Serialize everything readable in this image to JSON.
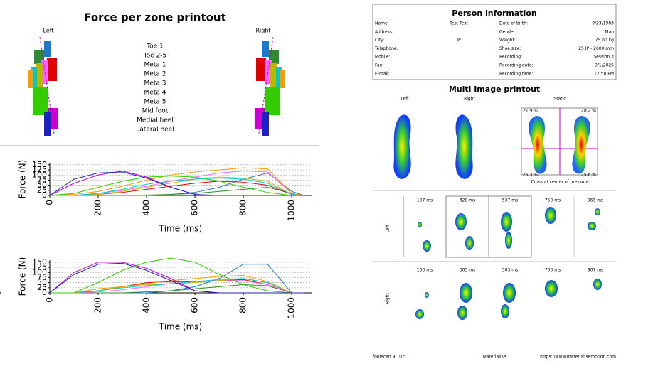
{
  "left_panel": {
    "title": "Force per zone printout",
    "foot_labels": [
      "Left",
      "Right"
    ]
  },
  "chart_data": [
    {
      "type": "line",
      "label": "Left",
      "ylabel": "Force (N)",
      "xlabel": "Time (ms)",
      "x": [
        0,
        100,
        200,
        300,
        400,
        500,
        600,
        700,
        800,
        900,
        1000,
        1050
      ],
      "xlim": [
        0,
        1085
      ],
      "ylim": [
        0,
        160
      ],
      "xticks": [
        0,
        200,
        400,
        600,
        800,
        1000
      ],
      "yticks": [
        0,
        25,
        50,
        75,
        100,
        125,
        150
      ],
      "grid": true,
      "series": [
        {
          "name": "Toe 1",
          "color": "#1f78c8",
          "values": [
            0,
            0,
            0,
            0,
            0,
            5,
            15,
            40,
            80,
            110,
            20,
            0
          ]
        },
        {
          "name": "Toe 2-5",
          "color": "#2e8b2e",
          "values": [
            0,
            0,
            0,
            0,
            2,
            5,
            10,
            20,
            30,
            40,
            10,
            0
          ]
        },
        {
          "name": "Meta 1",
          "color": "#e00000",
          "values": [
            0,
            0,
            5,
            15,
            30,
            45,
            60,
            70,
            65,
            50,
            5,
            0
          ]
        },
        {
          "name": "Meta 2",
          "color": "#ff66ff",
          "values": [
            0,
            0,
            10,
            25,
            45,
            70,
            90,
            110,
            120,
            115,
            10,
            0
          ]
        },
        {
          "name": "Meta 3",
          "color": "#b8b800",
          "values": [
            0,
            0,
            5,
            20,
            40,
            60,
            80,
            90,
            85,
            70,
            5,
            0
          ]
        },
        {
          "name": "Meta 4",
          "color": "#00c8c8",
          "values": [
            0,
            0,
            10,
            30,
            55,
            70,
            80,
            85,
            80,
            60,
            5,
            0
          ]
        },
        {
          "name": "Meta 5",
          "color": "#ff9900",
          "values": [
            0,
            5,
            20,
            45,
            75,
            100,
            115,
            125,
            135,
            130,
            10,
            0
          ]
        },
        {
          "name": "Mid foot",
          "color": "#33cc00",
          "values": [
            0,
            10,
            40,
            70,
            90,
            95,
            90,
            70,
            40,
            15,
            0,
            0
          ]
        },
        {
          "name": "Medial heel",
          "color": "#cc00cc",
          "values": [
            0,
            60,
            100,
            120,
            90,
            40,
            5,
            0,
            0,
            0,
            0,
            0
          ]
        },
        {
          "name": "Lateral heel",
          "color": "#2020c0",
          "values": [
            0,
            80,
            110,
            115,
            85,
            40,
            5,
            0,
            0,
            0,
            0,
            0
          ]
        }
      ]
    },
    {
      "type": "line",
      "label": "Right",
      "ylabel": "Force (N)",
      "xlabel": "Time (ms)",
      "x": [
        0,
        100,
        200,
        300,
        400,
        500,
        600,
        700,
        800,
        900,
        1000,
        1050
      ],
      "xlim": [
        0,
        1085
      ],
      "ylim": [
        0,
        160
      ],
      "xticks": [
        0,
        200,
        400,
        600,
        800,
        1000
      ],
      "yticks": [
        0,
        25,
        50,
        75,
        100,
        125,
        150
      ],
      "grid": true,
      "series": [
        {
          "name": "Toe 1",
          "color": "#1f78c8",
          "values": [
            0,
            0,
            0,
            0,
            0,
            10,
            30,
            70,
            140,
            140,
            0,
            0
          ]
        },
        {
          "name": "Toe 2-5",
          "color": "#2e8b2e",
          "values": [
            0,
            0,
            0,
            0,
            5,
            10,
            20,
            30,
            40,
            35,
            0,
            0
          ]
        },
        {
          "name": "Meta 1",
          "color": "#e00000",
          "values": [
            0,
            0,
            10,
            30,
            50,
            55,
            55,
            60,
            65,
            40,
            0,
            0
          ]
        },
        {
          "name": "Meta 2",
          "color": "#ff66ff",
          "values": [
            0,
            0,
            5,
            15,
            30,
            45,
            55,
            60,
            60,
            40,
            0,
            0
          ]
        },
        {
          "name": "Meta 3",
          "color": "#b8b800",
          "values": [
            0,
            0,
            10,
            30,
            40,
            45,
            50,
            60,
            70,
            50,
            0,
            0
          ]
        },
        {
          "name": "Meta 4",
          "color": "#00c8c8",
          "values": [
            0,
            0,
            10,
            25,
            35,
            45,
            55,
            65,
            70,
            50,
            0,
            0
          ]
        },
        {
          "name": "Meta 5",
          "color": "#ff9900",
          "values": [
            0,
            0,
            20,
            30,
            45,
            60,
            70,
            80,
            85,
            55,
            0,
            0
          ]
        },
        {
          "name": "Mid foot",
          "color": "#33cc00",
          "values": [
            0,
            0,
            50,
            110,
            150,
            170,
            150,
            90,
            40,
            10,
            0,
            0
          ]
        },
        {
          "name": "Medial heel",
          "color": "#cc00cc",
          "values": [
            0,
            100,
            150,
            150,
            120,
            70,
            10,
            0,
            0,
            0,
            0,
            0
          ]
        },
        {
          "name": "Lateral heel",
          "color": "#2020c0",
          "values": [
            0,
            90,
            140,
            145,
            110,
            60,
            10,
            0,
            0,
            0,
            0,
            0
          ]
        }
      ]
    }
  ],
  "person_info": {
    "title": "Person information",
    "left_fields": [
      {
        "label": "Name:",
        "value": "Test Test"
      },
      {
        "label": "Address:"
      },
      {
        "label": "City:",
        "value": "JP"
      },
      {
        "label": "Telephone:"
      },
      {
        "label": "Mobile:"
      },
      {
        "label": "Fax:"
      },
      {
        "label": "E-mail:"
      }
    ],
    "right_fields": [
      {
        "label": "Date of birth:",
        "value": "9/23/1983"
      },
      {
        "label": "Gender:",
        "value": "Man"
      },
      {
        "label": "Weight:",
        "value": "75.00 kg"
      },
      {
        "label": "Shoe size:",
        "value": "25 JP - 2600 mm"
      },
      {
        "label": "Recording:",
        "value": "Session 3"
      },
      {
        "label": "Recording date:",
        "value": "9/1/2025"
      },
      {
        "label": "Recording time:",
        "value": "12:58 PM"
      }
    ]
  },
  "multi_image": {
    "title": "Multi Image printout",
    "columns": [
      "Left",
      "Right",
      "Static"
    ],
    "static_corners": [
      "21.9 %",
      "28.2 %",
      "25.3 %",
      "25.6 %"
    ],
    "static_caption": "Cross at center of pressure",
    "rows": [
      {
        "label": "Left",
        "times": [
          "107 ms",
          "320 ms",
          "537 ms",
          "750 ms",
          "963 ms"
        ]
      },
      {
        "label": "Right",
        "times": [
          "100 ms",
          "303 ms",
          "503 ms",
          "703 ms",
          "907 ms"
        ]
      }
    ]
  },
  "footer": [
    "footscan 9.10.5",
    "Materialise",
    "https://www.materialisemotion.com"
  ]
}
